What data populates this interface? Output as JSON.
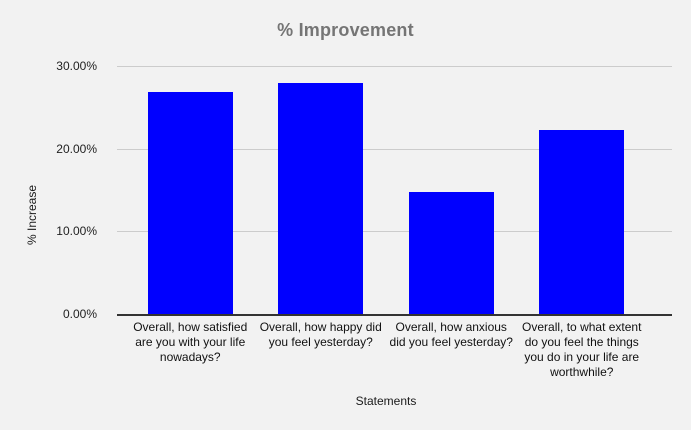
{
  "chart_data": {
    "type": "bar",
    "title": "% Improvement",
    "xlabel": "Statements",
    "ylabel": "% Increase",
    "categories": [
      "Overall, how satisfied are you with your life nowadays?",
      "Overall, how happy did you feel yesterday?",
      "Overall, how anxious did you feel yesterday?",
      "Overall, to what extent do you feel the things you do in your life are worthwhile?"
    ],
    "values": [
      26.9,
      28.0,
      14.8,
      22.2
    ],
    "ylim": [
      0,
      30
    ],
    "yticks": [
      "0.00%",
      "10.00%",
      "20.00%",
      "30.00%"
    ],
    "ytick_values": [
      0,
      10,
      20,
      30
    ],
    "grid": true,
    "legend": false
  },
  "colors": {
    "background": "#f2f2f2",
    "bar": "#0000ff",
    "title": "#757575",
    "gridline": "#cccccc",
    "axis_line": "#333333",
    "label_text": "#111111"
  }
}
